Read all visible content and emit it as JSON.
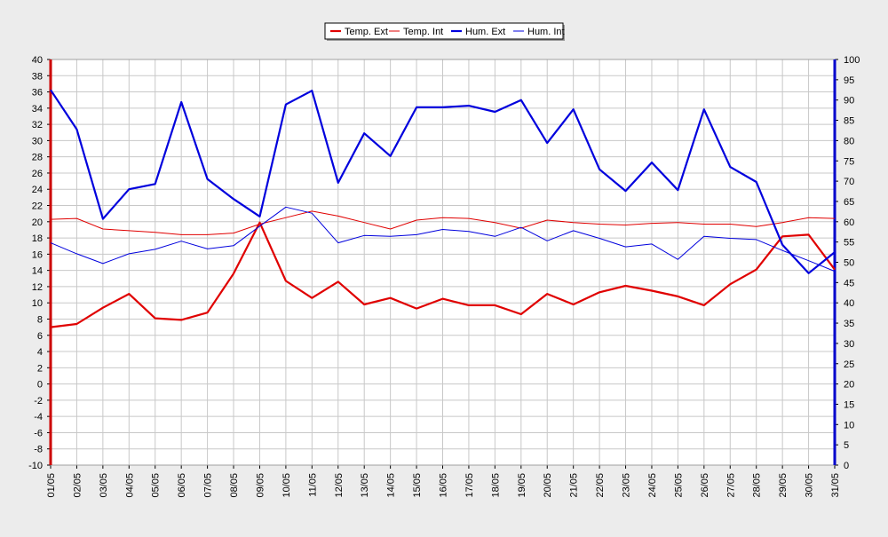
{
  "chart_data": {
    "type": "line",
    "categories": [
      "01/05",
      "02/05",
      "03/05",
      "04/05",
      "05/05",
      "06/05",
      "07/05",
      "08/05",
      "09/05",
      "10/05",
      "11/05",
      "12/05",
      "13/05",
      "14/05",
      "15/05",
      "16/05",
      "17/05",
      "18/05",
      "19/05",
      "20/05",
      "21/05",
      "22/05",
      "23/05",
      "24/05",
      "25/05",
      "26/05",
      "27/05",
      "28/05",
      "29/05",
      "30/05",
      "31/05"
    ],
    "left_axis": {
      "min": -10,
      "max": 40,
      "step": 2,
      "color": "#cc0000"
    },
    "right_axis": {
      "min": 0,
      "max": 100,
      "step": 5,
      "color": "#0000cc"
    },
    "grid": true,
    "legend_position": "top-center",
    "series": [
      {
        "name": "Temp. Ext",
        "axis": "left",
        "color": "#e00000",
        "width": 2.2,
        "values": [
          7.0,
          7.4,
          9.4,
          11.1,
          8.1,
          7.9,
          8.8,
          13.6,
          19.9,
          12.7,
          10.6,
          12.6,
          9.8,
          10.6,
          9.3,
          10.5,
          9.7,
          9.7,
          8.6,
          11.1,
          9.8,
          11.3,
          12.1,
          11.5,
          10.8,
          9.7,
          12.3,
          14.1,
          18.2,
          18.4,
          14.1
        ]
      },
      {
        "name": "Temp. Int",
        "axis": "left",
        "color": "#e00000",
        "width": 1,
        "values": [
          20.3,
          20.4,
          19.1,
          18.9,
          18.7,
          18.4,
          18.4,
          18.6,
          19.7,
          20.5,
          21.3,
          20.7,
          19.9,
          19.1,
          20.2,
          20.5,
          20.4,
          19.9,
          19.2,
          20.2,
          19.9,
          19.7,
          19.6,
          19.8,
          19.9,
          19.7,
          19.7,
          19.4,
          19.9,
          20.5,
          20.4
        ]
      },
      {
        "name": "Hum. Ext",
        "axis": "right",
        "color": "#0000dd",
        "width": 2.2,
        "values": [
          92.5,
          82.8,
          60.7,
          68,
          69.3,
          89.5,
          70.5,
          65.6,
          61.3,
          88.9,
          92.3,
          69.6,
          81.8,
          76.2,
          88.2,
          88.2,
          88.6,
          87.1,
          90,
          79.4,
          87.7,
          72.9,
          67.6,
          74.6,
          67.8,
          87.7,
          73.5,
          69.8,
          54.3,
          47.3,
          52.5
        ]
      },
      {
        "name": "Hum. Int",
        "axis": "right",
        "color": "#0000dd",
        "width": 1,
        "values": [
          54.8,
          52.1,
          49.7,
          52.1,
          53.2,
          55.2,
          53.3,
          54.1,
          58.9,
          63.6,
          62.1,
          54.8,
          56.6,
          56.4,
          56.8,
          58.1,
          57.6,
          56.4,
          58.6,
          55.3,
          57.8,
          55.9,
          53.8,
          54.5,
          50.7,
          56.4,
          55.9,
          55.6,
          52.9,
          50.4,
          47.8
        ]
      }
    ]
  }
}
